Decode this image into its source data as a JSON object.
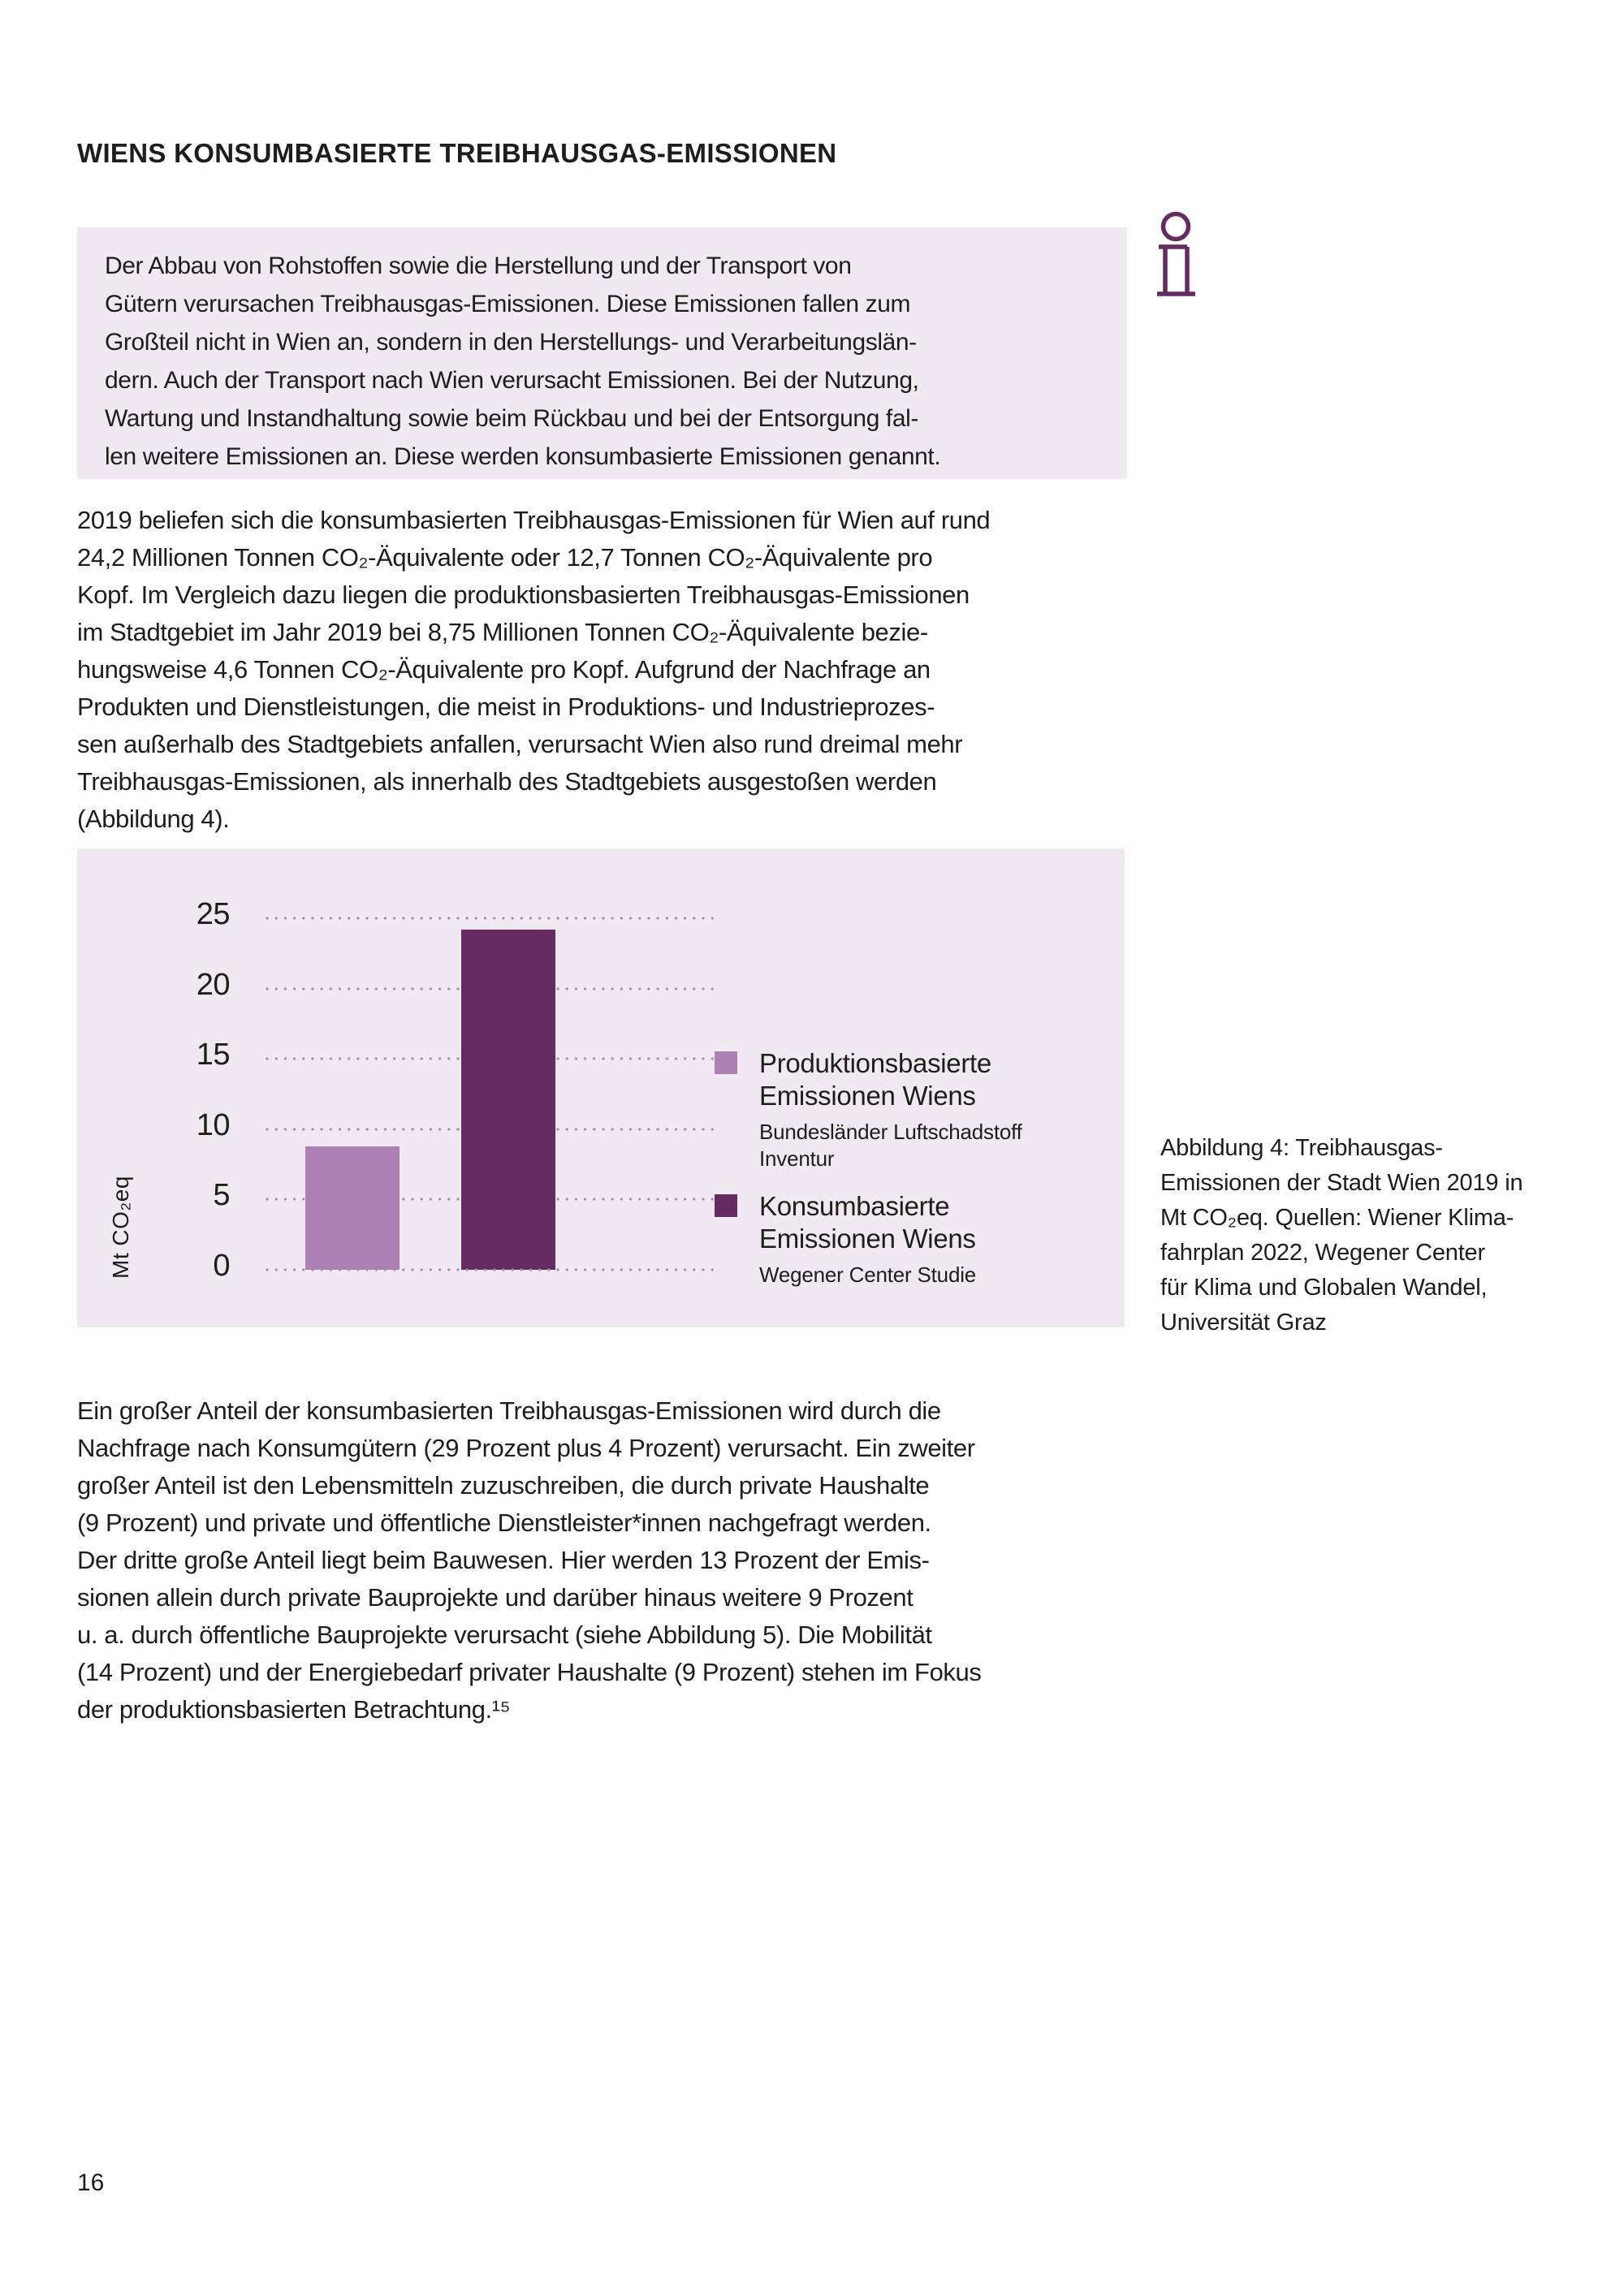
{
  "page": {
    "number": "16"
  },
  "header": {
    "title": "WIENS KONSUMBASIERTE TREIBHAUSGAS-EMISSIONEN"
  },
  "info_box": {
    "icon": "info-icon",
    "lines": [
      "Der Abbau von Rohstoffen sowie die Herstellung und der Transport von",
      "Gütern verursachen Treibhausgas-Emissionen. Diese Emissionen fallen zum",
      "Großteil nicht in Wien an, sondern in den Herstellungs- und Verarbeitungslän-",
      "dern. Auch der Transport nach Wien verursacht Emissionen. Bei der Nutzung,",
      "Wartung und Instandhaltung sowie beim Rückbau und bei der Entsorgung fal-",
      "len weitere Emissionen an. Diese werden konsumbasierte Emissionen genannt."
    ]
  },
  "intro_paragraph": {
    "lines": [
      "2019 beliefen sich die konsumbasierten Treibhausgas-Emissionen für Wien auf rund",
      "24,2 Millionen Tonnen CO₂-Äquivalente oder 12,7 Tonnen CO₂-Äquivalente pro",
      "Kopf. Im Vergleich dazu liegen die produktionsbasierten Treibhausgas-Emissionen",
      "im Stadtgebiet im Jahr 2019 bei 8,75 Millionen Tonnen CO₂-Äquivalente bezie-",
      "hungsweise 4,6 Tonnen CO₂-Äquivalente pro Kopf. Aufgrund der Nachfrage an",
      "Produkten und Dienstleistungen, die meist in Produktions- und Industrieprozes-",
      "sen außerhalb des Stadtgebiets anfallen, verursacht Wien also rund dreimal mehr",
      "Treibhausgas-Emissionen, als innerhalb des Stadtgebiets ausgestoßen werden",
      "(Abbildung 4)."
    ]
  },
  "chart_data": {
    "type": "bar",
    "title": "",
    "xlabel": "",
    "ylabel": "Mt CO₂eq",
    "ylim": [
      0,
      25
    ],
    "yticks": [
      25,
      20,
      15,
      10,
      5,
      0
    ],
    "grid": "horizontal-dotted",
    "legend_position": "right",
    "categories": [
      "Produktionsbasierte Emissionen Wiens",
      "Konsumbasierte Emissionen Wiens"
    ],
    "values": [
      8.75,
      24.2
    ],
    "sources": [
      "Bundesländer Luftschadstoff Inventur",
      "Wegener Center Studie"
    ],
    "legend": [
      {
        "label": "Produktionsbasierte\nEmissionen Wiens",
        "sublabel": "Bundesländer Luftschadstoff\nInventur",
        "color": "#ac80b4"
      },
      {
        "label": "Konsumbasierte\nEmissionen Wiens",
        "sublabel": "Wegener Center Studie",
        "color": "#662b63"
      }
    ],
    "colors": {
      "bar_light": "#ac80b4",
      "bar_dark": "#662b63",
      "panel_bg": "#f1e9f1",
      "dot": "#9c92a2",
      "text": "#1d1d1b"
    }
  },
  "figure": {
    "caption_lines": [
      "Abbildung 4: Treibhausgas-",
      "Emissionen der Stadt Wien 2019 in",
      "Mt CO₂eq. Quellen: Wiener Klima-",
      "fahrplan 2022, Wegener Center",
      "für Klima und Globalen Wandel,",
      "Universität Graz"
    ]
  },
  "body_paragraph": {
    "lines": [
      "Ein großer Anteil der konsumbasierten Treibhausgas-Emissionen wird durch die",
      "Nachfrage nach Konsumgütern (29 Prozent plus 4 Prozent) verursacht. Ein zweiter",
      "großer Anteil ist den Lebensmitteln zuzuschreiben, die durch private Haushalte",
      "(9 Prozent) und private und öffentliche Dienstleister*innen nachgefragt werden.",
      "Der dritte große Anteil liegt beim Bauwesen. Hier werden 13 Prozent der Emis-",
      "sionen allein durch private Bauprojekte und darüber hinaus weitere 9 Prozent",
      "u. a. durch öffentliche Bauprojekte verursacht (siehe Abbildung 5). Die Mobilität",
      "(14 Prozent) und der Energiebedarf privater Haushalte (9 Prozent) stehen im Fokus",
      "der produktionsbasierten Betrachtung.¹⁵"
    ]
  }
}
